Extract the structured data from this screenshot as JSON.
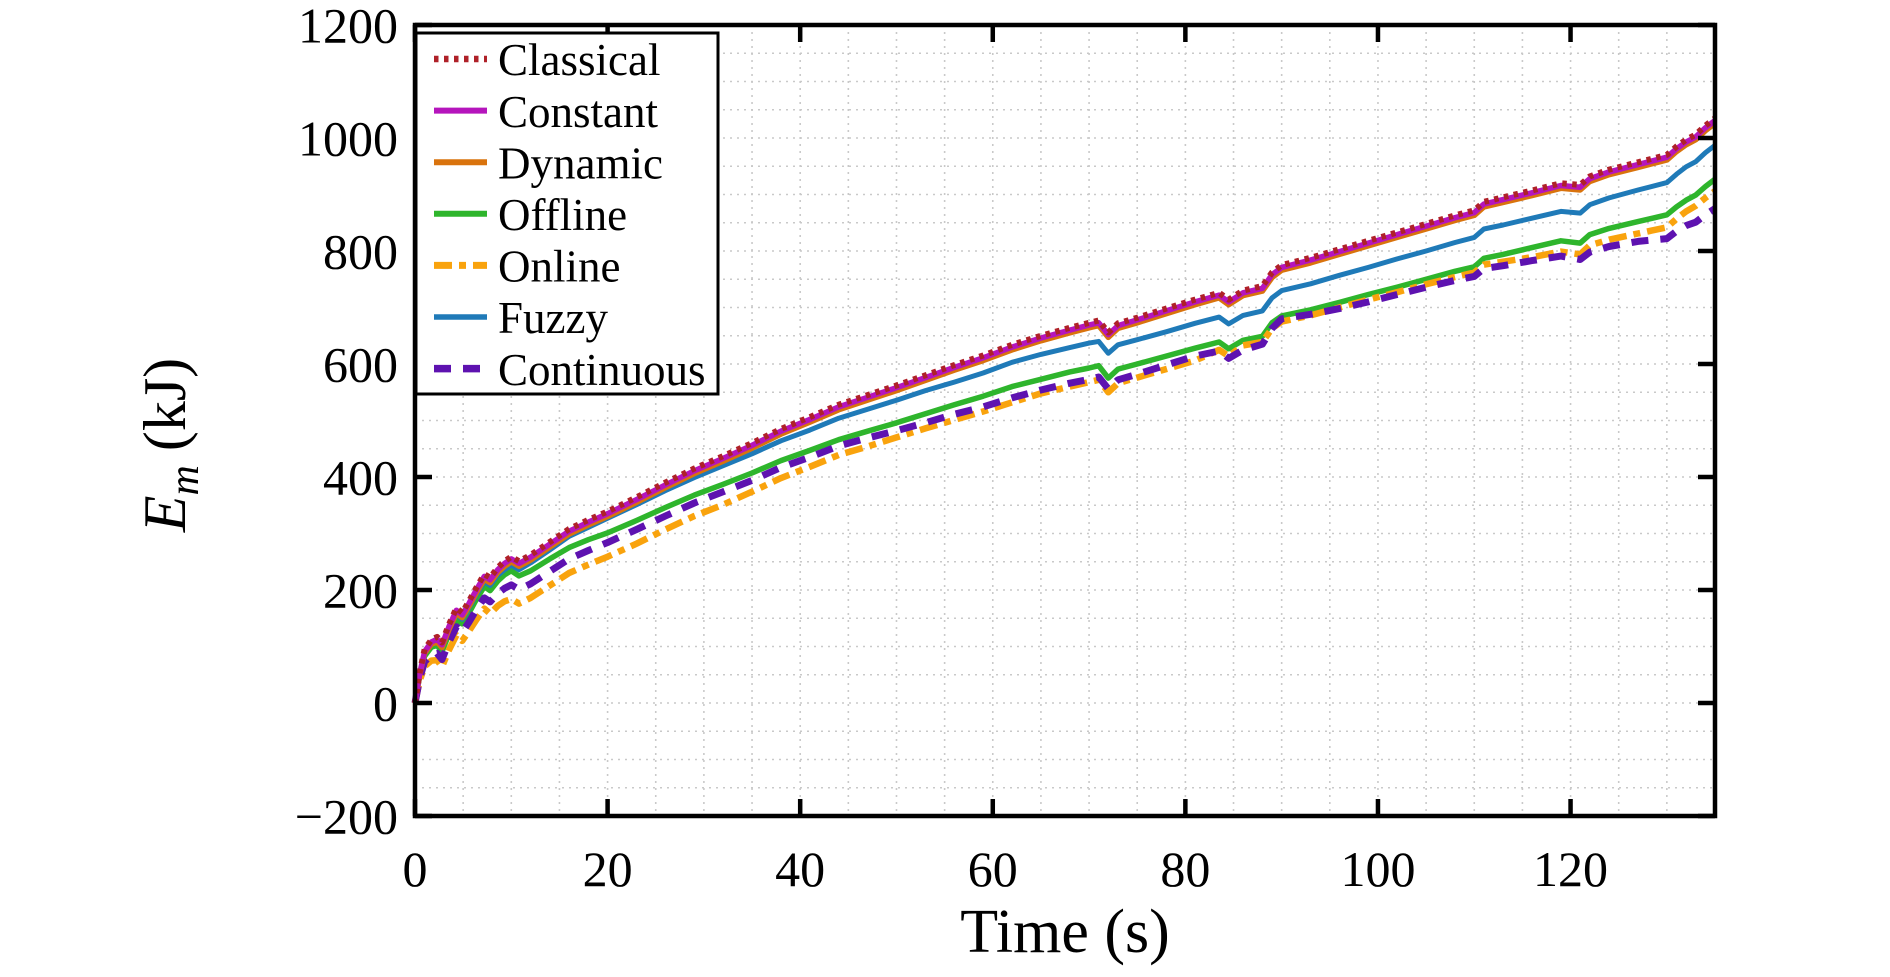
{
  "figure": {
    "background": "#ffffff",
    "frame_color": "#000000",
    "grid_color": "#c9c9c9",
    "ylabel": {
      "symbol": "E",
      "subscript": "m",
      "unit": "(kJ)"
    }
  },
  "chart_data": {
    "type": "line",
    "title": "",
    "xlabel": "Time (s)",
    "ylabel": "E_m (kJ)",
    "xlim": [
      0,
      135
    ],
    "ylim": [
      -200,
      1200
    ],
    "x_ticks": [
      0,
      20,
      40,
      60,
      80,
      100,
      120
    ],
    "y_ticks": [
      -200,
      0,
      200,
      400,
      600,
      800,
      1000,
      1200
    ],
    "x_minor_step": 5,
    "y_minor_step": 50,
    "grid": "minor-dotted",
    "legend_position": "upper-left",
    "x": [
      0,
      0.5,
      1,
      1.7,
      2.3,
      2.8,
      3.5,
      4.3,
      4.9,
      5.6,
      6.4,
      7.2,
      7.8,
      8.6,
      9.3,
      10,
      10.8,
      12,
      14,
      16,
      18,
      20,
      23,
      26,
      29,
      32,
      35,
      38,
      41,
      44,
      47,
      50,
      53,
      56,
      59,
      62,
      65,
      68,
      70,
      71,
      72,
      73,
      75,
      78,
      81,
      83.5,
      84.5,
      86,
      88,
      89,
      90,
      93,
      96,
      99,
      102,
      105,
      108,
      110,
      111,
      113,
      116,
      119,
      121,
      122,
      124,
      127,
      130,
      131,
      132,
      133,
      134,
      135
    ],
    "series": [
      {
        "name": "Classical",
        "color": "#AF2128",
        "style": "dotted",
        "dash": "4.5 5.5",
        "width": 6,
        "draw_order": 7,
        "values": [
          0,
          55,
          95,
          112,
          117,
          107,
          138,
          168,
          160,
          180,
          205,
          228,
          222,
          240,
          251,
          259,
          251,
          262,
          285,
          308,
          324,
          339,
          364,
          390,
          415,
          437,
          460,
          485,
          506,
          528,
          545,
          562,
          580,
          598,
          615,
          634,
          650,
          664,
          673,
          677,
          656,
          672,
          682,
          698,
          714,
          726,
          714,
          730,
          738,
          762,
          775,
          788,
          803,
          818,
          833,
          848,
          863,
          872,
          887,
          895,
          907,
          920,
          917,
          932,
          944,
          957,
          970,
          985,
          997,
          1006,
          1022,
          1035
        ]
      },
      {
        "name": "Constant",
        "color": "#B515BC",
        "style": "solid",
        "dash": "",
        "width": 5.5,
        "draw_order": 6,
        "values": [
          0,
          53,
          91,
          108,
          113,
          103,
          134,
          164,
          156,
          176,
          201,
          224,
          218,
          236,
          247,
          255,
          247,
          258,
          281,
          304,
          320,
          335,
          360,
          386,
          411,
          433,
          456,
          481,
          502,
          524,
          541,
          558,
          576,
          594,
          611,
          630,
          646,
          660,
          669,
          673,
          652,
          668,
          678,
          694,
          710,
          722,
          710,
          726,
          734,
          758,
          771,
          784,
          799,
          814,
          829,
          844,
          859,
          868,
          883,
          891,
          903,
          916,
          913,
          928,
          940,
          953,
          966,
          981,
          993,
          1002,
          1018,
          1031
        ]
      },
      {
        "name": "Dynamic",
        "color": "#D9730D",
        "style": "solid",
        "dash": "",
        "width": 5.5,
        "draw_order": 5,
        "values": [
          0,
          51,
          88,
          104,
          108,
          98,
          129,
          159,
          151,
          171,
          196,
          219,
          213,
          231,
          242,
          250,
          242,
          253,
          276,
          299,
          315,
          330,
          355,
          381,
          406,
          428,
          451,
          476,
          497,
          519,
          536,
          553,
          571,
          589,
          606,
          625,
          641,
          655,
          664,
          668,
          647,
          663,
          673,
          689,
          705,
          717,
          705,
          721,
          729,
          753,
          766,
          779,
          794,
          809,
          824,
          839,
          854,
          863,
          878,
          886,
          898,
          911,
          908,
          923,
          935,
          948,
          961,
          976,
          988,
          997,
          1013,
          1026
        ]
      },
      {
        "name": "Offline",
        "color": "#2EB52C",
        "style": "solid",
        "dash": "",
        "width": 5.5,
        "draw_order": 1,
        "values": [
          0,
          49,
          83,
          99,
          102,
          91,
          121,
          149,
          140,
          159,
          184,
          206,
          199,
          216,
          227,
          234,
          225,
          234,
          255,
          275,
          289,
          301,
          323,
          346,
          368,
          387,
          407,
          429,
          447,
          466,
          481,
          496,
          512,
          528,
          543,
          560,
          573,
          586,
          593,
          597,
          575,
          591,
          600,
          614,
          628,
          639,
          627,
          642,
          649,
          673,
          685,
          696,
          709,
          723,
          736,
          750,
          764,
          772,
          787,
          794,
          806,
          818,
          814,
          829,
          840,
          852,
          864,
          878,
          890,
          899,
          914,
          927
        ]
      },
      {
        "name": "Online",
        "color": "#F9A30D",
        "style": "dashdot",
        "dash": "18 7 7 7",
        "width": 6.5,
        "draw_order": 3,
        "values": [
          0,
          40,
          65,
          75,
          76,
          64,
          93,
          120,
          110,
          127,
          148,
          167,
          158,
          172,
          180,
          184,
          176,
          186,
          208,
          230,
          245,
          259,
          282,
          307,
          331,
          351,
          374,
          398,
          418,
          439,
          454,
          470,
          486,
          501,
          516,
          532,
          548,
          560,
          568,
          572,
          550,
          566,
          576,
          591,
          606,
          625,
          614,
          633,
          639,
          663,
          675,
          686,
          700,
          714,
          727,
          741,
          754,
          762,
          776,
          781,
          789,
          799,
          794,
          810,
          820,
          831,
          842,
          857,
          870,
          880,
          894,
          906
        ]
      },
      {
        "name": "Fuzzy",
        "color": "#1F7AB8",
        "style": "solid",
        "dash": "",
        "width": 5,
        "draw_order": 2,
        "values": [
          0,
          51,
          87,
          103,
          108,
          97,
          128,
          157,
          148,
          168,
          192,
          215,
          208,
          226,
          236,
          244,
          236,
          248,
          271,
          295,
          311,
          327,
          351,
          376,
          399,
          420,
          441,
          464,
          483,
          504,
          520,
          536,
          553,
          568,
          584,
          603,
          617,
          629,
          637,
          640,
          619,
          634,
          643,
          657,
          672,
          683,
          671,
          686,
          694,
          717,
          730,
          742,
          757,
          771,
          786,
          800,
          815,
          824,
          839,
          846,
          858,
          870,
          867,
          882,
          894,
          908,
          921,
          936,
          949,
          958,
          974,
          987
        ]
      },
      {
        "name": "Continuous",
        "color": "#5E12B0",
        "style": "dashed",
        "dash": "17 12",
        "width": 7,
        "draw_order": 4,
        "values": [
          0,
          44,
          73,
          86,
          88,
          77,
          107,
          135,
          125,
          143,
          166,
          186,
          179,
          194,
          203,
          209,
          201,
          211,
          233,
          255,
          270,
          284,
          307,
          331,
          354,
          374,
          394,
          417,
          435,
          455,
          469,
          482,
          496,
          511,
          524,
          540,
          554,
          566,
          573,
          577,
          556,
          572,
          582,
          598,
          614,
          623,
          610,
          625,
          635,
          663,
          680,
          688,
          698,
          710,
          723,
          736,
          748,
          755,
          769,
          774,
          783,
          791,
          785,
          798,
          808,
          817,
          822,
          835,
          845,
          851,
          864,
          875
        ]
      }
    ]
  }
}
